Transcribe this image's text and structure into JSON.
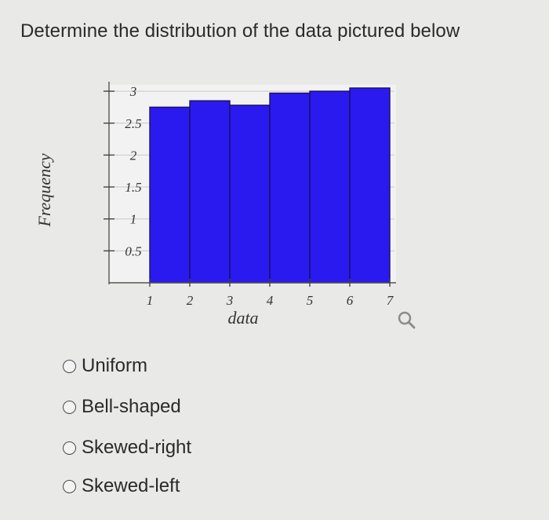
{
  "question": "Determine the distribution of the data pictured below",
  "chart_data": {
    "type": "bar",
    "xlabel": "data",
    "ylabel": "Frequency",
    "x_ticks": [
      "1",
      "2",
      "3",
      "4",
      "5",
      "6",
      "7"
    ],
    "y_ticks": [
      "0.5",
      "1",
      "1.5",
      "2",
      "2.5",
      "3"
    ],
    "ylim": [
      0,
      3.1
    ],
    "xlim": [
      1,
      7
    ],
    "bins": [
      {
        "start": 1,
        "end": 2,
        "value": 2.75
      },
      {
        "start": 2,
        "end": 3,
        "value": 2.85
      },
      {
        "start": 3,
        "end": 4,
        "value": 2.78
      },
      {
        "start": 4,
        "end": 5,
        "value": 2.97
      },
      {
        "start": 5,
        "end": 6,
        "value": 3.0
      },
      {
        "start": 6,
        "end": 7,
        "value": 3.05
      }
    ],
    "bar_color": "#2a1af0",
    "grid": true
  },
  "options": [
    {
      "label": "Uniform"
    },
    {
      "label": "Bell-shaped"
    },
    {
      "label": "Skewed-right"
    },
    {
      "label": "Skewed-left"
    }
  ]
}
